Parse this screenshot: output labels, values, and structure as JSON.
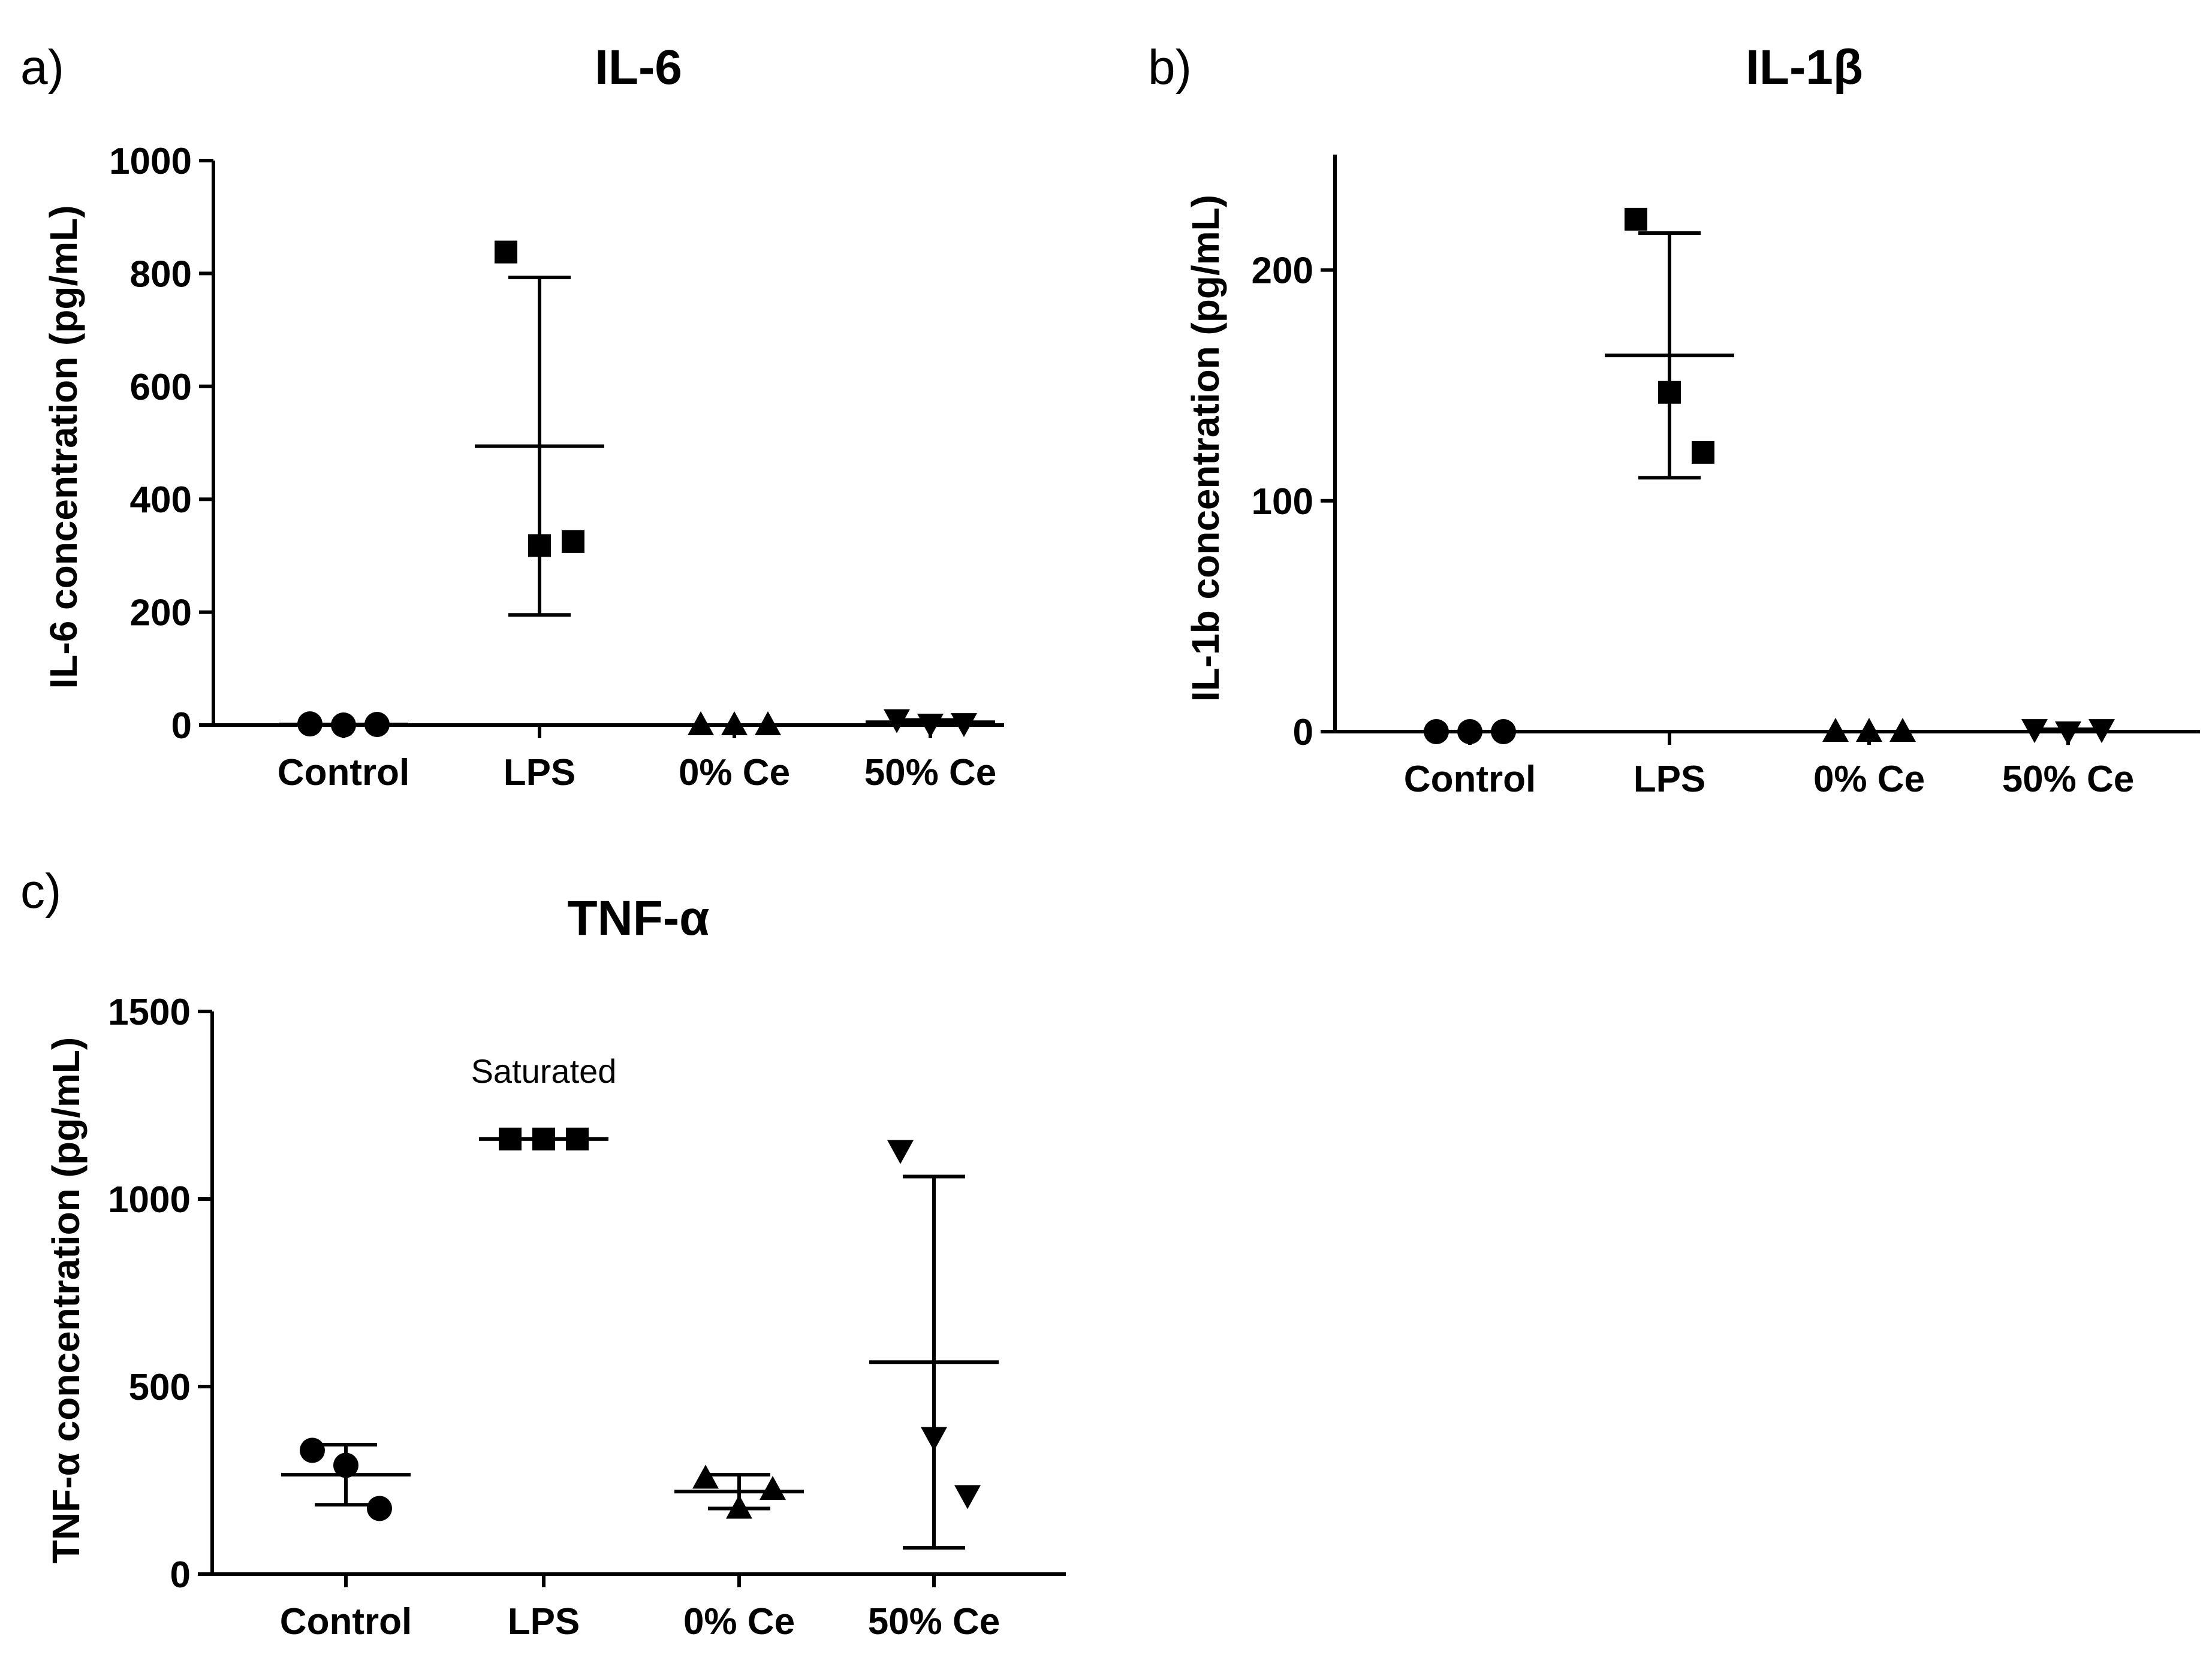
{
  "figure": {
    "panels": [
      "a)",
      "b)",
      "c)"
    ]
  },
  "chart_data": [
    {
      "type": "scatter",
      "panel_label": "a)",
      "title": "IL-6",
      "xlabel": "",
      "ylabel": "IL-6 concentration (pg/mL)",
      "ylim": [
        0,
        1000
      ],
      "yticks": [
        "0",
        "200",
        "400",
        "600",
        "800",
        "1000"
      ],
      "categories": [
        "Control",
        "LPS",
        "0% Ce",
        "50% Ce"
      ],
      "markers": [
        "circle",
        "square",
        "triangle-up",
        "triangle-down"
      ],
      "points": [
        [
          2,
          0,
          1
        ],
        [
          838,
          318,
          325
        ],
        [
          0,
          0,
          0
        ],
        [
          10,
          2,
          3
        ]
      ],
      "mean": [
        1,
        494,
        0,
        5
      ],
      "sd_upper": [
        2,
        793,
        0,
        9
      ],
      "sd_lower": [
        0,
        195,
        0,
        1
      ],
      "annotations": []
    },
    {
      "type": "scatter",
      "panel_label": "b)",
      "title": "IL-1β",
      "xlabel": "",
      "ylabel": "IL-1b concentration (pg/mL)",
      "ylim": [
        0,
        250
      ],
      "yticks": [
        "0",
        "100",
        "200"
      ],
      "categories": [
        "Control",
        "LPS",
        "0% Ce",
        "50% Ce"
      ],
      "markers": [
        "circle",
        "square",
        "triangle-up",
        "triangle-down"
      ],
      "points": [
        [
          0,
          0,
          0
        ],
        [
          222,
          147,
          121
        ],
        [
          0,
          0,
          0
        ],
        [
          1,
          0,
          1
        ]
      ],
      "mean": [
        0,
        163,
        0,
        0
      ],
      "sd_upper": [
        0,
        216,
        0,
        1
      ],
      "sd_lower": [
        0,
        110,
        0,
        0
      ],
      "annotations": []
    },
    {
      "type": "scatter",
      "panel_label": "c)",
      "title": "TNF-α",
      "xlabel": "",
      "ylabel": "TNF-α concentration (pg/mL)",
      "ylim": [
        0,
        1500
      ],
      "yticks": [
        "0",
        "500",
        "1000",
        "1500"
      ],
      "categories": [
        "Control",
        "LPS",
        "0% Ce",
        "50% Ce"
      ],
      "markers": [
        "circle",
        "square",
        "triangle-up",
        "triangle-down"
      ],
      "points": [
        [
          330,
          290,
          175
        ],
        [
          1160,
          1160,
          1160
        ],
        [
          255,
          175,
          225
        ],
        [
          1130,
          365,
          210
        ]
      ],
      "mean": [
        265,
        1160,
        220,
        565
      ],
      "sd_upper": [
        345,
        1160,
        265,
        1060
      ],
      "sd_lower": [
        185,
        1160,
        175,
        70
      ],
      "annotations": [
        {
          "text": "Saturated",
          "category": "LPS",
          "value": 1310
        }
      ]
    }
  ]
}
